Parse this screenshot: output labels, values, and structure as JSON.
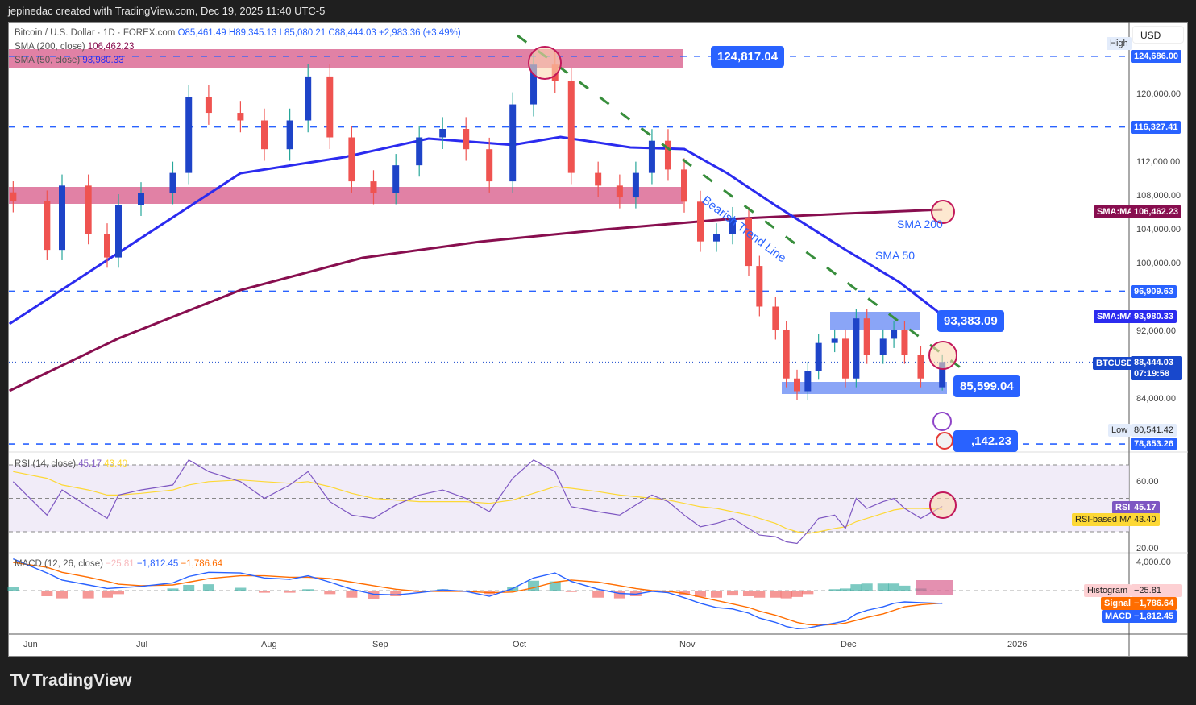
{
  "header": {
    "credit": "jepinedac created with TradingView.com, Dec 19, 2025 11:40 UTC-5"
  },
  "legend": {
    "symbol": "Bitcoin / U.S. Dollar · 1D · FOREX.com",
    "open": "O85,461.49",
    "high": "H89,345.13",
    "low": "L85,080.21",
    "close": "C88,444.03",
    "change": "+2,983.36 (+3.49%)",
    "sma200_label": "SMA (200, close)",
    "sma200_value": "106,462.23",
    "sma50_label": "SMA (50, close)",
    "sma50_value": "93,980.33",
    "rsi_label": "RSI (14, close)",
    "rsi_value": "45.17",
    "rsi_ma_value": "43.40",
    "macd_label": "MACD (12, 26, close)",
    "macd_hist_value": "−25.81",
    "macd_value": "−1,812.45",
    "macd_signal_value": "−1,786.64"
  },
  "price_axis": {
    "currency": "USD",
    "ticks": [
      "120,000.00",
      "112,000.00",
      "108,000.00",
      "104,000.00",
      "100,000.00",
      "92,000.00",
      "84,000.00"
    ],
    "high_label": "High",
    "high_value": "124,686.00",
    "low_label": "Low",
    "low_value": "80,541.42",
    "level_1": "116,327.41",
    "level_2": "96,909.63",
    "level_3": "78,853.26",
    "sma200_tag": "SMA:MA",
    "sma200_badge": "106,462.23",
    "sma50_tag": "SMA:MA",
    "sma50_badge": "93,980.33",
    "symbol_tag": "BTCUSD",
    "last_price": "88,444.03",
    "countdown": "07:19:58"
  },
  "rsi_axis": {
    "ticks": [
      "60.00",
      "20.00"
    ],
    "rsi_tag": "RSI",
    "rsi_badge": "45.17",
    "ma_tag": "RSI-based MA",
    "ma_badge": "43.40"
  },
  "macd_axis": {
    "ticks": [
      "4,000.00"
    ],
    "hist_tag": "Histogram",
    "hist_badge": "−25.81",
    "signal_tag": "Signal",
    "signal_badge": "−1,786.64",
    "macd_tag": "MACD",
    "macd_badge": "−1,812.45"
  },
  "time_axis": {
    "labels": [
      "Jun",
      "Jul",
      "Aug",
      "Sep",
      "Oct",
      "Nov",
      "Dec",
      "2026"
    ]
  },
  "annotations": {
    "callout_top": "124,817.04",
    "callout_mid": "93,383.09",
    "callout_low": "85,599.04",
    "callout_bottom": ",142.23",
    "trend_label": "Bearish Trend Line",
    "sma200_text": "SMA 200",
    "sma50_text": "SMA 50"
  },
  "footer": {
    "brand": "TradingView"
  },
  "colors": {
    "up": "#1e44c8",
    "down": "#ef5350",
    "sma50": "#2b2bef",
    "sma200": "#880e4f",
    "level": "#2962ff",
    "trend": "#388e3c",
    "zone_red": "#d9618f",
    "zone_blue": "#6d8ef5",
    "rsi": "#7e57c2",
    "rsi_ma": "#fdd835",
    "macd": "#2962ff",
    "signal": "#ff6d00"
  },
  "chart_data": {
    "type": "candlestick",
    "symbol": "BTCUSD",
    "ylim": [
      78000,
      126000
    ],
    "last_candle": {
      "open": 85461.49,
      "high": 89345.13,
      "low": 85080.21,
      "close": 88444.03
    },
    "dates": [
      "2025-05-28",
      "2025-06-06",
      "2025-06-10",
      "2025-06-17",
      "2025-06-22",
      "2025-06-25",
      "2025-07-01",
      "2025-07-09",
      "2025-07-13",
      "2025-07-18",
      "2025-07-26",
      "2025-08-01",
      "2025-08-08",
      "2025-08-13",
      "2025-08-19",
      "2025-08-25",
      "2025-08-31",
      "2025-09-05",
      "2025-09-10",
      "2025-09-15",
      "2025-09-20",
      "2025-09-25",
      "2025-09-30",
      "2025-10-04",
      "2025-10-08",
      "2025-10-11",
      "2025-10-16",
      "2025-10-20",
      "2025-10-23",
      "2025-10-26",
      "2025-10-29",
      "2025-11-01",
      "2025-11-04",
      "2025-11-07",
      "2025-11-10",
      "2025-11-13",
      "2025-11-15",
      "2025-11-18",
      "2025-11-20",
      "2025-11-22",
      "2025-11-24",
      "2025-11-26",
      "2025-11-29",
      "2025-12-01",
      "2025-12-03",
      "2025-12-05",
      "2025-12-08",
      "2025-12-10",
      "2025-12-12",
      "2025-12-15",
      "2025-12-19"
    ],
    "closes": [
      107430,
      101700,
      109300,
      103600,
      100800,
      107000,
      108400,
      110800,
      119800,
      117900,
      117000,
      113600,
      117000,
      122200,
      115000,
      109800,
      108400,
      111700,
      115000,
      116000,
      113600,
      109800,
      118900,
      123600,
      121700,
      110800,
      109300,
      107900,
      110800,
      114600,
      111200,
      107400,
      102700,
      103600,
      105500,
      99800,
      95000,
      92200,
      86500,
      85000,
      87400,
      90700,
      91200,
      86500,
      93600,
      89300,
      91200,
      92200,
      89300,
      86500,
      88444.03
    ],
    "sma50": {
      "dates": [
        "2025-05-27",
        "2025-07-26",
        "2025-08-23",
        "2025-09-12",
        "2025-09-30",
        "2025-10-09",
        "2025-10-22",
        "2025-11-01",
        "2025-11-09",
        "2025-11-18",
        "2025-12-01",
        "2025-12-11",
        "2025-12-19"
      ],
      "values": [
        92950,
        110760,
        112670,
        114860,
        114100,
        115050,
        113810,
        113620,
        110760,
        106950,
        101710,
        97900,
        93980.33
      ]
    },
    "sma200": {
      "dates": [
        "2025-05-27",
        "2025-06-25",
        "2025-07-26",
        "2025-08-28",
        "2025-09-23",
        "2025-10-17",
        "2025-11-09",
        "2025-12-01",
        "2025-12-19"
      ],
      "values": [
        85050,
        91240,
        96950,
        100760,
        102670,
        104100,
        105330,
        106000,
        106462.23
      ]
    },
    "levels": [
      124686.0,
      116327.41,
      96909.63,
      78853.26
    ],
    "rsi": {
      "ylim": [
        15,
        80
      ],
      "bands": [
        70,
        50,
        30
      ],
      "values": [
        60,
        40,
        55,
        45,
        38,
        52,
        55,
        58,
        73,
        66,
        60,
        50,
        58,
        66,
        48,
        40,
        38,
        46,
        52,
        55,
        50,
        42,
        62,
        73,
        66,
        45,
        42,
        40,
        46,
        52,
        48,
        40,
        33,
        35,
        38,
        32,
        28,
        27,
        24,
        23,
        30,
        38,
        40,
        32,
        50,
        44,
        48,
        50,
        44,
        38,
        45.17
      ],
      "ma": [
        66,
        62,
        58,
        55,
        52,
        52,
        53,
        55,
        58,
        60,
        61,
        60,
        59,
        60,
        57,
        53,
        50,
        49,
        48,
        48,
        48,
        47,
        49,
        53,
        57,
        56,
        54,
        52,
        51,
        50,
        49,
        47,
        45,
        44,
        42,
        40,
        38,
        35,
        32,
        30,
        29,
        30,
        32,
        33,
        36,
        38,
        41,
        43,
        44,
        44,
        43.4
      ]
    },
    "macd": {
      "macd": [
        4500,
        2500,
        1500,
        800,
        300,
        400,
        600,
        1100,
        2000,
        2600,
        2500,
        1800,
        1600,
        2100,
        1200,
        200,
        -500,
        -600,
        -300,
        100,
        -100,
        -800,
        300,
        1800,
        2500,
        1300,
        200,
        -400,
        -500,
        -100,
        -300,
        -1000,
        -1800,
        -2400,
        -2600,
        -3200,
        -3900,
        -4500,
        -5100,
        -5400,
        -5300,
        -5000,
        -4600,
        -4300,
        -3300,
        -2800,
        -2300,
        -1800,
        -1600,
        -1700,
        -1812.45
      ],
      "signal": [
        4000,
        3300,
        2600,
        1900,
        1300,
        900,
        700,
        800,
        1200,
        1700,
        2100,
        2100,
        1900,
        1900,
        1700,
        1200,
        700,
        200,
        -100,
        -100,
        -100,
        -300,
        -200,
        400,
        1200,
        1500,
        1200,
        700,
        300,
        0,
        -100,
        -400,
        -900,
        -1400,
        -1900,
        -2400,
        -2900,
        -3500,
        -4000,
        -4500,
        -4800,
        -4900,
        -4800,
        -4600,
        -4200,
        -3800,
        -3300,
        -2800,
        -2300,
        -2000,
        -1786.64
      ]
    }
  }
}
